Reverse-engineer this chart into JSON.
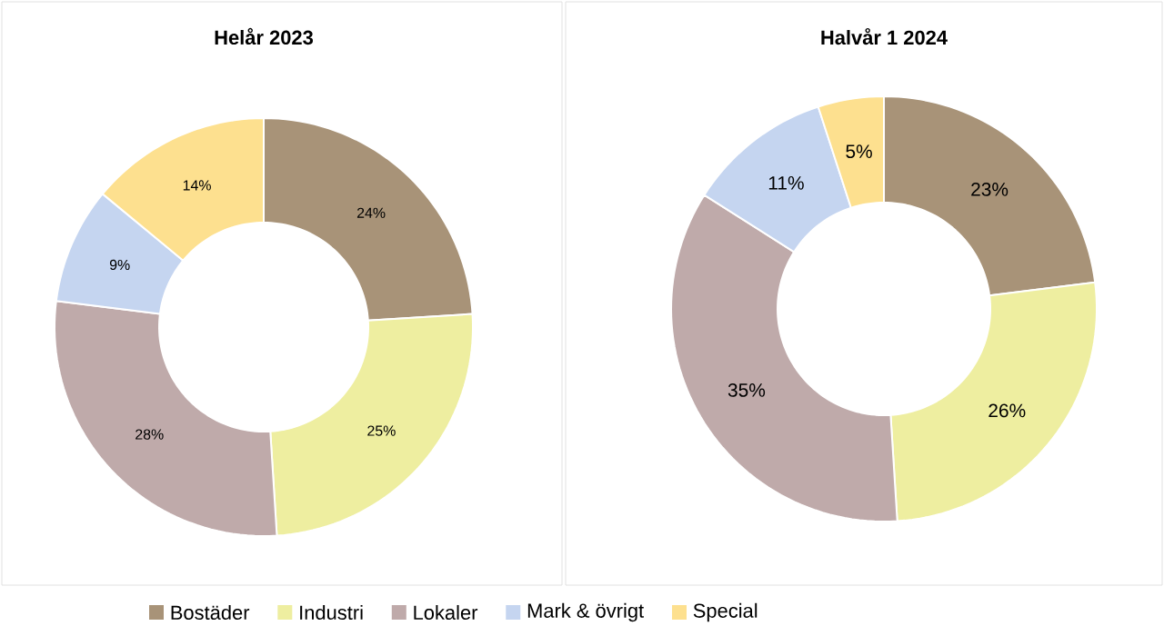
{
  "chart_data": [
    {
      "type": "donut",
      "title": "Helår 2023",
      "categories": [
        "Bostäder",
        "Industri",
        "Lokaler",
        "Mark & övrigt",
        "Special"
      ],
      "values": [
        24,
        25,
        28,
        9,
        14
      ],
      "value_labels": [
        "24%",
        "25%",
        "28%",
        "9%",
        "14%"
      ],
      "colors": [
        "#a89378",
        "#eeeea0",
        "#bfaaaa",
        "#c5d5f0",
        "#fde08f"
      ],
      "legend": "bottom"
    },
    {
      "type": "donut",
      "title": "Halvår 1 2024",
      "categories": [
        null,
        null,
        null,
        null,
        null
      ],
      "values": [
        23,
        26,
        35,
        11,
        5
      ],
      "value_labels": [
        "23%",
        "26%",
        "35%",
        "11%",
        "5%"
      ],
      "colors": [
        "#a89378",
        "#eeeea0",
        "#bfaaaa",
        "#c5d5f0",
        "#fde08f"
      ]
    }
  ]
}
